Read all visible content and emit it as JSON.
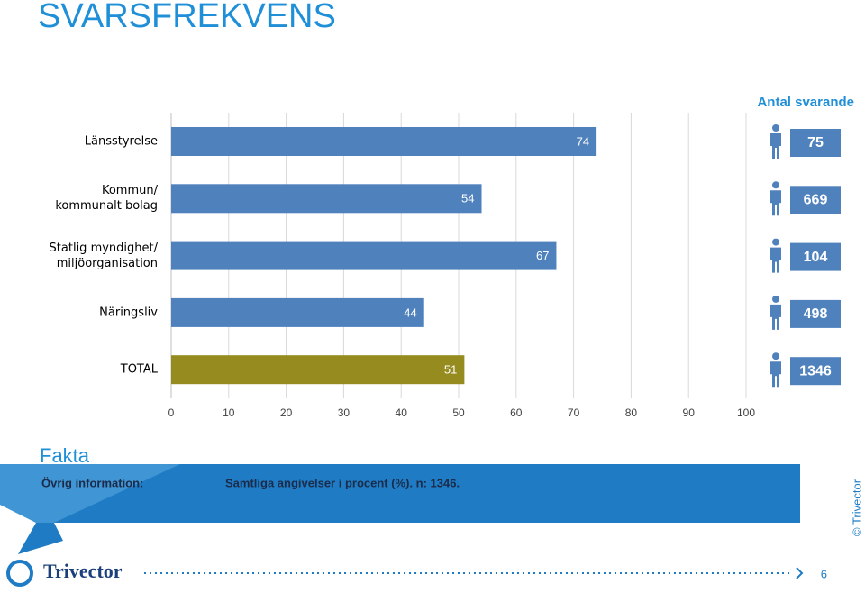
{
  "chart_data": {
    "type": "hbar",
    "categories": [
      "Länsstyrelse",
      "Kommun/\nkommunalt bolag",
      "Statlig myndighet/\nmiljöorganisation",
      "Näringsliv",
      "TOTAL"
    ],
    "values": [
      74,
      54,
      67,
      44,
      51
    ],
    "colors": [
      "#4f81bd",
      "#4f81bd",
      "#4f81bd",
      "#4f81bd",
      "#958b1f"
    ],
    "xlim": [
      0,
      100
    ],
    "xticks": [
      0,
      10,
      20,
      30,
      40,
      50,
      60,
      70,
      80,
      90,
      100
    ],
    "grid": true,
    "respondents": {
      "title": "Antal svarande",
      "values": [
        75,
        669,
        104,
        498,
        1346
      ],
      "color": "#4f81bd"
    }
  },
  "slide": {
    "title": "SVARSFREKVENS",
    "facts_title": "Fakta",
    "info_label": "Övrig information:",
    "info_text": "Samtliga angivelser i procent (%). n: 1346.",
    "copyright": "© Trivector",
    "logo": "Trivector",
    "page": "6"
  }
}
